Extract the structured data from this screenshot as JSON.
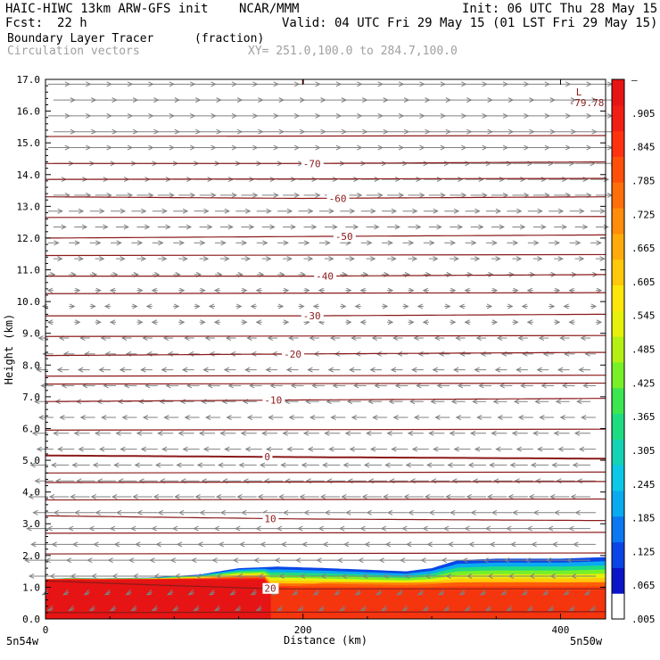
{
  "header": {
    "model": "HAIC-HIWC 13km ARW-GFS init",
    "org": "NCAR/MMM",
    "init": "Init: 06 UTC Thu 28 May 15",
    "fcst_label": "Fcst:",
    "fcst_value": "22 h",
    "valid": "Valid: 04 UTC Fri 29 May 15 (01 LST Fri 29 May 15)",
    "field_name": "Boundary Layer Tracer",
    "field_units": "(fraction)",
    "vector_label": "Circulation vectors",
    "xy_label": "XY= 251.0,100.0 to 284.7,100.0"
  },
  "colors": {
    "contour": "#8b1a1a",
    "vectors": "#808080",
    "tracer_scale": [
      "#ffffff",
      "#0a14c8",
      "#0a46e6",
      "#0a78f0",
      "#0aaaf0",
      "#0ac8e6",
      "#14d2b4",
      "#1edc82",
      "#3ce650",
      "#78f028",
      "#b4f014",
      "#e6f00a",
      "#ffe60a",
      "#ffc80a",
      "#ffaa0a",
      "#ff8c0a",
      "#ff6e0a",
      "#ff500a",
      "#ff3210",
      "#f01e14",
      "#e61414"
    ]
  },
  "chart_data": {
    "type": "heatmap",
    "description_axes": "vertical cross-section",
    "xlabel": "Distance (km)",
    "ylabel": "Height (km)",
    "xlim": [
      0,
      435
    ],
    "ylim": [
      0,
      17
    ],
    "x_ticks": [
      "0",
      "200",
      "400"
    ],
    "y_ticks": [
      "0.0",
      "1.0",
      "2.0",
      "3.0",
      "4.0",
      "5.0",
      "6.0",
      "7.0",
      "8.0",
      "9.0",
      "10.0",
      "11.0",
      "12.0",
      "13.0",
      "14.0",
      "15.0",
      "16.0",
      "17.0"
    ],
    "x_endpoints": {
      "left": "5n54w",
      "right": "5n50w"
    },
    "colorbar_labels": [
      "–",
      ".905",
      ".845",
      ".785",
      ".725",
      ".665",
      ".605",
      ".545",
      ".485",
      ".425",
      ".365",
      ".305",
      ".245",
      ".185",
      ".125",
      ".065",
      ".005"
    ],
    "tracer_top_km": [
      [
        0,
        1.25
      ],
      [
        20,
        1.3
      ],
      [
        40,
        1.28
      ],
      [
        80,
        1.3
      ],
      [
        120,
        1.4
      ],
      [
        150,
        1.6
      ],
      [
        180,
        1.65
      ],
      [
        220,
        1.6
      ],
      [
        250,
        1.55
      ],
      [
        280,
        1.5
      ],
      [
        300,
        1.6
      ],
      [
        320,
        1.85
      ],
      [
        350,
        1.9
      ],
      [
        400,
        1.9
      ],
      [
        435,
        1.95
      ]
    ],
    "temperature_contours": [
      {
        "label": "20",
        "height": [
          [
            0,
            1.2
          ],
          [
            100,
            1.05
          ],
          [
            180,
            0.95
          ],
          [
            300,
            0.95
          ],
          [
            435,
            0.95
          ]
        ],
        "label_x": 170
      },
      {
        "label": "10",
        "height": [
          [
            0,
            3.25
          ],
          [
            200,
            3.15
          ],
          [
            435,
            3.1
          ]
        ],
        "label_x": 170
      },
      {
        "label": "0",
        "height": [
          [
            0,
            5.15
          ],
          [
            200,
            5.1
          ],
          [
            435,
            5.05
          ]
        ],
        "label_x": 170
      },
      {
        "label": "-10",
        "height": [
          [
            0,
            6.85
          ],
          [
            200,
            6.9
          ],
          [
            435,
            6.95
          ]
        ],
        "label_x": 170
      },
      {
        "label": "-20",
        "height": [
          [
            0,
            8.3
          ],
          [
            200,
            8.35
          ],
          [
            435,
            8.4
          ]
        ],
        "label_x": 185
      },
      {
        "label": "-30",
        "height": [
          [
            0,
            9.55
          ],
          [
            200,
            9.55
          ],
          [
            435,
            9.6
          ]
        ],
        "label_x": 200
      },
      {
        "label": "-40",
        "height": [
          [
            0,
            10.8
          ],
          [
            200,
            10.8
          ],
          [
            435,
            10.85
          ]
        ],
        "label_x": 210
      },
      {
        "label": "-50",
        "height": [
          [
            0,
            12.0
          ],
          [
            200,
            12.05
          ],
          [
            435,
            12.1
          ]
        ],
        "label_x": 225
      },
      {
        "label": "-60",
        "height": [
          [
            0,
            13.3
          ],
          [
            200,
            13.25
          ],
          [
            435,
            13.3
          ]
        ],
        "label_x": 220
      },
      {
        "label": "-70",
        "height": [
          [
            0,
            14.35
          ],
          [
            200,
            14.35
          ],
          [
            435,
            14.4
          ]
        ],
        "label_x": 200
      }
    ],
    "extra_contours_km": [
      0.2,
      2.05,
      2.7,
      3.75,
      4.3,
      4.6,
      5.95,
      7.4,
      7.65,
      8.9,
      10.25,
      11.45,
      12.65,
      13.85,
      15.2
    ],
    "min_marker": {
      "label": "L",
      "value": "-79.78",
      "x": 405,
      "y": 16.6
    },
    "top_marker_x": 200,
    "vectors": {
      "upper_direction": "eastward",
      "lower_direction": "westward",
      "transition_km": 10.5
    }
  }
}
